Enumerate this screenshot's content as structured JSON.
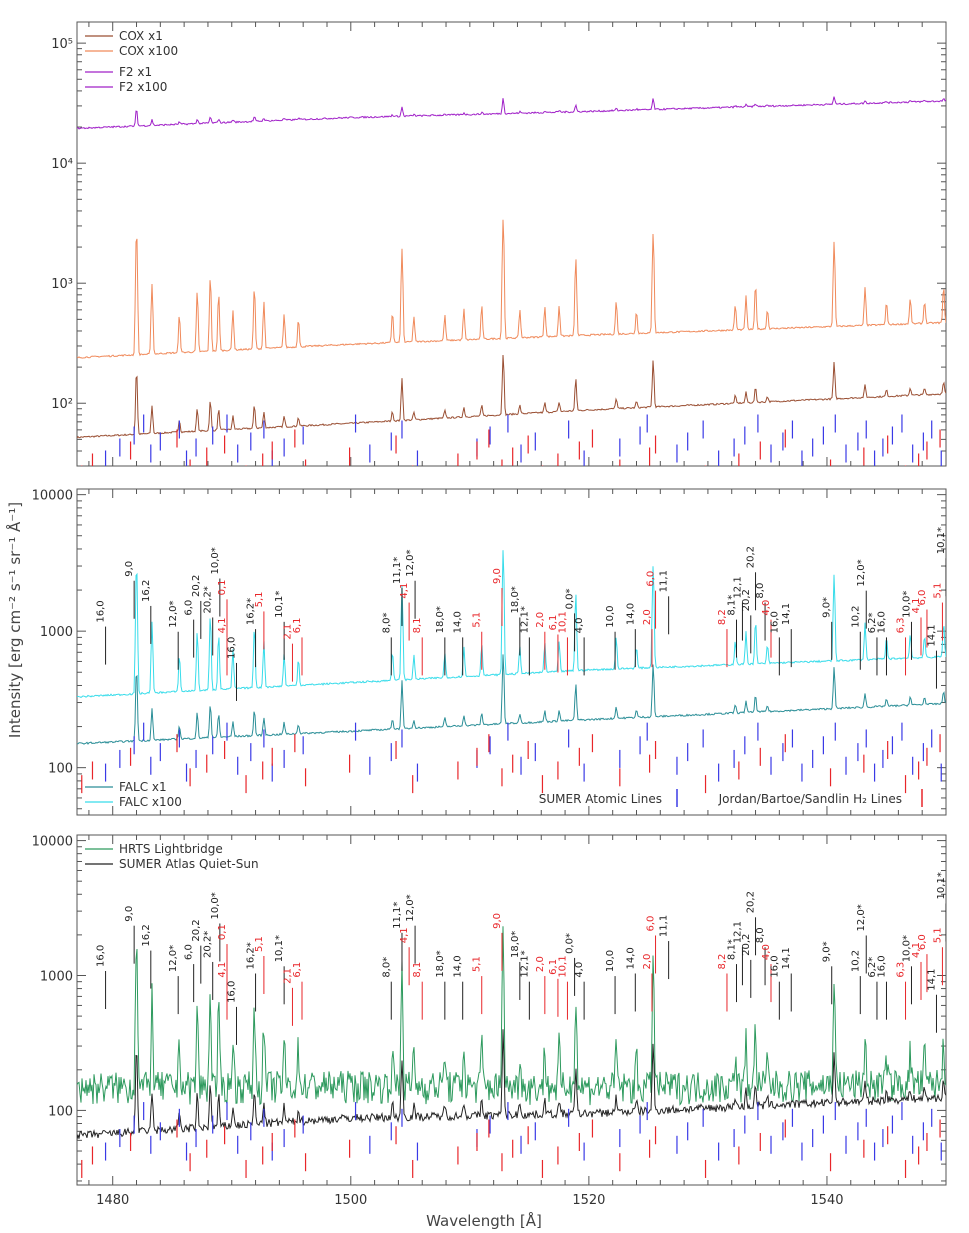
{
  "figure": {
    "ylabel": "Intensity [erg cm⁻² s⁻¹ sr⁻¹ Å⁻¹]",
    "xlabel": "Wavelength [Å]",
    "colors": {
      "cox1": "#9a4f33",
      "cox100": "#f08a5b",
      "f2": "#a020c8",
      "falc1": "#2a8e97",
      "falc100": "#38dcea",
      "hrts": "#2e9a5e",
      "sumer": "#222222",
      "atomic": "#3a3ae6",
      "h2": "#e8262a"
    }
  },
  "xaxis": {
    "range": [
      1477,
      1550
    ],
    "ticks": [
      1480,
      1500,
      1520,
      1540
    ],
    "labels": [
      "1480",
      "1500",
      "1520",
      "1540"
    ]
  },
  "chart_data": [
    {
      "type": "line",
      "panel": "top",
      "ylog": true,
      "ylim": [
        30,
        150000
      ],
      "yticks": [
        {
          "v": 100,
          "label": "10²"
        },
        {
          "v": 1000,
          "label": "10³"
        },
        {
          "v": 10000,
          "label": "10⁴"
        },
        {
          "v": 100000,
          "label": "10⁵"
        }
      ],
      "legend": {
        "placement": "top-left",
        "entries": [
          {
            "name": "COX x1",
            "color": "cox1"
          },
          {
            "name": "COX x100",
            "color": "cox100"
          },
          {
            "name": "F2 x1",
            "color": "f2"
          },
          {
            "name": "F2 x100",
            "color": "f2"
          }
        ]
      },
      "series": [
        {
          "name": "COX x1",
          "color": "cox1",
          "continuum": [
            [
              1477,
              52
            ],
            [
              1500,
              68
            ],
            [
              1520,
              88
            ],
            [
              1550,
              120
            ]
          ],
          "lineScale": 0.25
        },
        {
          "name": "COX x100",
          "color": "cox100",
          "continuum": [
            [
              1477,
              240
            ],
            [
              1500,
              310
            ],
            [
              1520,
              370
            ],
            [
              1550,
              470
            ]
          ],
          "lineScale": 1.0
        },
        {
          "name": "F2 x100",
          "color": "f2",
          "continuum": [
            [
              1477,
              19500
            ],
            [
              1500,
              24000
            ],
            [
              1520,
              27000
            ],
            [
              1550,
              33000
            ]
          ],
          "lineScale": 0.04
        }
      ],
      "tick_rows": [
        {
          "kind": "atomic",
          "center": 48
        },
        {
          "kind": "h2",
          "center": 36
        }
      ]
    },
    {
      "type": "line",
      "panel": "middle",
      "ylog": true,
      "ylim": [
        45,
        11000
      ],
      "yticks": [
        {
          "v": 100,
          "label": "100"
        },
        {
          "v": 1000,
          "label": "1000"
        },
        {
          "v": 10000,
          "label": "10000"
        }
      ],
      "legend": {
        "placement": "bottom-left",
        "entries": [
          {
            "name": "FALC x1",
            "color": "falc1"
          },
          {
            "name": "FALC x100",
            "color": "falc100"
          }
        ]
      },
      "legend_right": {
        "placement": "bottom-right",
        "entries": [
          {
            "name": "SUMER Atomic Lines",
            "color": "atomic"
          },
          {
            "name": "Jordan/Bartoe/Sandlin H₂ Lines",
            "color": "h2"
          }
        ]
      },
      "series": [
        {
          "name": "FALC x1",
          "color": "falc1",
          "continuum": [
            [
              1477,
              150
            ],
            [
              1500,
              185
            ],
            [
              1520,
              225
            ],
            [
              1550,
              295
            ]
          ],
          "lineScale": 0.25
        },
        {
          "name": "FALC x100",
          "color": "falc100",
          "continuum": [
            [
              1477,
              330
            ],
            [
              1500,
              420
            ],
            [
              1520,
              520
            ],
            [
              1550,
              650
            ]
          ],
          "lineScale": 0.8
        }
      ],
      "tick_rows": [
        {
          "kind": "atomic",
          "center": 130
        },
        {
          "kind": "h2",
          "center": 107
        }
      ]
    },
    {
      "type": "line",
      "panel": "bottom",
      "ylog": true,
      "ylim": [
        28,
        11000
      ],
      "yticks": [
        {
          "v": 100,
          "label": "100"
        },
        {
          "v": 1000,
          "label": "1000"
        },
        {
          "v": 10000,
          "label": "10000"
        }
      ],
      "legend": {
        "placement": "top-left",
        "entries": [
          {
            "name": "HRTS Lightbridge",
            "color": "hrts"
          },
          {
            "name": "SUMER Atlas Quiet-Sun",
            "color": "sumer"
          }
        ]
      },
      "series": [
        {
          "name": "HRTS Lightbridge",
          "color": "hrts",
          "continuum": [
            [
              1477,
              150
            ],
            [
              1500,
              155
            ],
            [
              1520,
              150
            ],
            [
              1550,
              160
            ]
          ],
          "lineScale": 1.3,
          "noise": 0.55
        },
        {
          "name": "SUMER Atlas Quiet-Sun",
          "color": "sumer",
          "continuum": [
            [
              1477,
              65
            ],
            [
              1500,
              88
            ],
            [
              1520,
              95
            ],
            [
              1550,
              125
            ]
          ],
          "lineScale": 0.35,
          "noise": 0.14
        }
      ],
      "tick_rows": [
        {
          "kind": "atomic",
          "center": 70
        },
        {
          "kind": "h2",
          "center": 52
        }
      ]
    }
  ],
  "emission_lines": [
    [
      1482.0,
      11
    ],
    [
      1483.3,
      3.2
    ],
    [
      1485.6,
      1.2
    ],
    [
      1487.1,
      2.4
    ],
    [
      1488.2,
      3.5
    ],
    [
      1488.9,
      2.2
    ],
    [
      1490.1,
      1.3
    ],
    [
      1491.9,
      2.5
    ],
    [
      1492.7,
      1.6
    ],
    [
      1494.4,
      1.0
    ],
    [
      1495.6,
      0.8
    ],
    [
      1503.5,
      0.9
    ],
    [
      1504.3,
      5.5
    ],
    [
      1505.3,
      0.7
    ],
    [
      1507.9,
      0.7
    ],
    [
      1509.5,
      0.9
    ],
    [
      1511.0,
      1.0
    ],
    [
      1512.8,
      10
    ],
    [
      1514.2,
      0.8
    ],
    [
      1516.3,
      0.9
    ],
    [
      1517.5,
      0.9
    ],
    [
      1518.9,
      3.8
    ],
    [
      1522.3,
      1.0
    ],
    [
      1524.0,
      0.6
    ],
    [
      1525.4,
      6.5
    ],
    [
      1532.3,
      0.7
    ],
    [
      1533.2,
      1.0
    ],
    [
      1534.0,
      1.5
    ],
    [
      1535.0,
      0.5
    ],
    [
      1540.6,
      4.5
    ],
    [
      1543.2,
      1.2
    ],
    [
      1545.0,
      0.6
    ],
    [
      1547.0,
      0.7
    ],
    [
      1548.2,
      0.6
    ],
    [
      1549.8,
      1.1
    ]
  ],
  "atomic_ticks": [
    1479.4,
    1480.6,
    1481.8,
    1482.6,
    1483.2,
    1484.0,
    1485.6,
    1486.2,
    1487.0,
    1488.4,
    1489.6,
    1490.5,
    1491.6,
    1492.7,
    1493.4,
    1494.4,
    1496.0,
    1500.4,
    1501.6,
    1503.4,
    1504.3,
    1505.6,
    1510.6,
    1511.7,
    1513.2,
    1514.3,
    1515.5,
    1518.3,
    1519.6,
    1522.6,
    1524.3,
    1524.9,
    1527.4,
    1528.3,
    1529.6,
    1530.9,
    1532.2,
    1533.1,
    1534.2,
    1535.3,
    1536.3,
    1537.1,
    1537.9,
    1538.8,
    1539.7,
    1540.7,
    1541.6,
    1542.6,
    1543.3,
    1544.0,
    1544.7,
    1545.5,
    1546.3,
    1547.2,
    1548.1,
    1548.8,
    1549.6
  ],
  "h2_ticks": [
    1477.4,
    1478.3,
    1481.5,
    1485.4,
    1486.5,
    1487.9,
    1489.4,
    1491.2,
    1492.6,
    1493.4,
    1495.3,
    1496.2,
    1499.9,
    1503.8,
    1505.2,
    1509.0,
    1510.6,
    1511.6,
    1512.7,
    1513.6,
    1514.9,
    1516.1,
    1517.4,
    1519.2,
    1520.3,
    1522.6,
    1525.1,
    1525.6,
    1529.8,
    1532.6,
    1534.4,
    1536.5,
    1540.3,
    1543.1,
    1545.1,
    1546.6,
    1547.7,
    1548.4,
    1549.5
  ],
  "annotations": [
    {
      "x": 1479.4,
      "label": "16,0",
      "color": "black",
      "y": 1200
    },
    {
      "x": 1481.8,
      "label": "9,0",
      "color": "black",
      "y": 2600
    },
    {
      "x": 1483.2,
      "label": "16,2",
      "color": "black",
      "y": 1700
    },
    {
      "x": 1485.5,
      "label": "12,0*",
      "color": "black",
      "y": 1100
    },
    {
      "x": 1486.8,
      "label": "6,0",
      "color": "black",
      "y": 1350
    },
    {
      "x": 1487.4,
      "label": "20,2",
      "color": "black",
      "y": 1850
    },
    {
      "x": 1488.4,
      "label": "20,2*",
      "color": "black",
      "y": 1400
    },
    {
      "x": 1489.0,
      "label": "10,0*",
      "color": "black",
      "y": 2700
    },
    {
      "x": 1489.6,
      "label": "0,1",
      "color": "red",
      "y": 1900
    },
    {
      "x": 1489.6,
      "label": "4,1",
      "color": "red",
      "y": 1000
    },
    {
      "x": 1490.4,
      "label": "16,0",
      "color": "black",
      "y": 650
    },
    {
      "x": 1492.0,
      "label": "16,2*",
      "color": "black",
      "y": 1150
    },
    {
      "x": 1492.7,
      "label": "5,1",
      "color": "red",
      "y": 1550
    },
    {
      "x": 1494.4,
      "label": "10,1*",
      "color": "black",
      "y": 1300
    },
    {
      "x": 1495.1,
      "label": "2,1",
      "color": "red",
      "y": 900
    },
    {
      "x": 1495.9,
      "label": "6,1",
      "color": "red",
      "y": 1000
    },
    {
      "x": 1503.4,
      "label": "8,0*",
      "color": "black",
      "y": 1000
    },
    {
      "x": 1504.3,
      "label": "11,1*",
      "color": "black",
      "y": 2300
    },
    {
      "x": 1504.9,
      "label": "4,1",
      "color": "red",
      "y": 1800
    },
    {
      "x": 1505.4,
      "label": "12,0*",
      "color": "black",
      "y": 2600
    },
    {
      "x": 1506.0,
      "label": "8,1",
      "color": "red",
      "y": 1000
    },
    {
      "x": 1507.9,
      "label": "18,0*",
      "color": "black",
      "y": 1000
    },
    {
      "x": 1509.4,
      "label": "14,0",
      "color": "black",
      "y": 1000
    },
    {
      "x": 1511.0,
      "label": "5,1",
      "color": "red",
      "y": 1100
    },
    {
      "x": 1512.7,
      "label": "9,0",
      "color": "red",
      "y": 2300
    },
    {
      "x": 1514.2,
      "label": "18,0*",
      "color": "black",
      "y": 1400
    },
    {
      "x": 1515.0,
      "label": "12,1*",
      "color": "black",
      "y": 1000
    },
    {
      "x": 1516.3,
      "label": "2,0",
      "color": "red",
      "y": 1100
    },
    {
      "x": 1517.4,
      "label": "6,1",
      "color": "red",
      "y": 1050
    },
    {
      "x": 1518.2,
      "label": "10,1",
      "color": "red",
      "y": 1000
    },
    {
      "x": 1518.8,
      "label": "0,0*",
      "color": "black",
      "y": 1500
    },
    {
      "x": 1519.6,
      "label": "4,0",
      "color": "black",
      "y": 1000
    },
    {
      "x": 1522.2,
      "label": "10,0",
      "color": "black",
      "y": 1100
    },
    {
      "x": 1523.9,
      "label": "14,0",
      "color": "black",
      "y": 1150
    },
    {
      "x": 1525.3,
      "label": "2,0",
      "color": "red",
      "y": 1150
    },
    {
      "x": 1525.6,
      "label": "6,0",
      "color": "red",
      "y": 2200
    },
    {
      "x": 1526.7,
      "label": "11,1",
      "color": "black",
      "y": 2000
    },
    {
      "x": 1531.6,
      "label": "8,2",
      "color": "red",
      "y": 1150
    },
    {
      "x": 1532.4,
      "label": "8,1*",
      "color": "black",
      "y": 1350
    },
    {
      "x": 1532.9,
      "label": "12,1",
      "color": "black",
      "y": 1800
    },
    {
      "x": 1533.6,
      "label": "20,2",
      "color": "black",
      "y": 1450
    },
    {
      "x": 1534.0,
      "label": "20,2",
      "color": "black",
      "y": 3000
    },
    {
      "x": 1534.8,
      "label": "8,0",
      "color": "black",
      "y": 1800
    },
    {
      "x": 1535.3,
      "label": "4,0",
      "color": "red",
      "y": 1350
    },
    {
      "x": 1536.0,
      "label": "16,0",
      "color": "black",
      "y": 1000
    },
    {
      "x": 1537.0,
      "label": "14,1",
      "color": "black",
      "y": 1150
    },
    {
      "x": 1540.4,
      "label": "9,0*",
      "color": "black",
      "y": 1300
    },
    {
      "x": 1542.8,
      "label": "10,2",
      "color": "black",
      "y": 1100
    },
    {
      "x": 1543.3,
      "label": "12,0*",
      "color": "black",
      "y": 2200
    },
    {
      "x": 1544.2,
      "label": "6,2*",
      "color": "black",
      "y": 1000
    },
    {
      "x": 1545.0,
      "label": "16,0",
      "color": "black",
      "y": 1000
    },
    {
      "x": 1546.6,
      "label": "6,3",
      "color": "red",
      "y": 1000
    },
    {
      "x": 1547.1,
      "label": "10,0*",
      "color": "black",
      "y": 1300
    },
    {
      "x": 1547.9,
      "label": "4,1",
      "color": "red",
      "y": 1400
    },
    {
      "x": 1548.4,
      "label": "6,0",
      "color": "red",
      "y": 1600
    },
    {
      "x": 1549.2,
      "label": "14,1",
      "color": "black",
      "y": 800
    },
    {
      "x": 1549.7,
      "label": "5,1",
      "color": "red",
      "y": 1800
    },
    {
      "x": 1550.0,
      "label": "10,1*",
      "color": "black",
      "y": 3800
    }
  ],
  "ann_adjust": {
    "top": 1.0,
    "bottom": 1.0
  }
}
